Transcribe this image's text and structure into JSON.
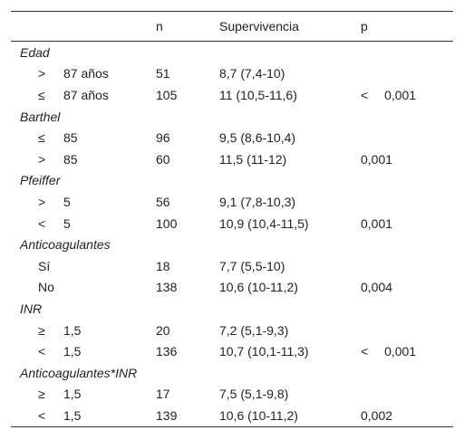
{
  "table": {
    "header": {
      "n": "n",
      "survival": "Supervivencia",
      "p": "p"
    },
    "groups": [
      {
        "title": "Edad",
        "rows": [
          {
            "sign": ">",
            "label": "87 años",
            "n": 51,
            "survival": "8,7 (7,4-10)"
          },
          {
            "sign": "≤",
            "label": "87 años",
            "n": 105,
            "survival": "11 (10,5-11,6)",
            "p": "< 0,001"
          }
        ]
      },
      {
        "title": "Barthel",
        "rows": [
          {
            "sign": "≤",
            "label": "85",
            "n": 96,
            "survival": "9,5 (8,6-10,4)"
          },
          {
            "sign": ">",
            "label": "85",
            "n": 60,
            "survival": "11,5 (11-12)",
            "p": "0,001"
          }
        ]
      },
      {
        "title": "Pfeiffer",
        "rows": [
          {
            "sign": ">",
            "label": "5",
            "n": 56,
            "survival": "9,1 (7,8-10,3)"
          },
          {
            "sign": "<",
            "label": "5",
            "n": 100,
            "survival": "10,9 (10,4-11,5)",
            "p": "0,001"
          }
        ]
      },
      {
        "title": "Anticoagulantes",
        "rows": [
          {
            "label": "Sí",
            "n": 18,
            "survival": "7,7 (5,5-10)"
          },
          {
            "label": "No",
            "n": 138,
            "survival": "10,6 (10-11,2)",
            "p": "0,004"
          }
        ]
      },
      {
        "title": "INR",
        "rows": [
          {
            "sign": "≥",
            "label": "1,5",
            "n": 20,
            "survival": "7,2 (5,1-9,3)"
          },
          {
            "sign": "<",
            "label": "1,5",
            "n": 136,
            "survival": "10,7 (10,1-11,3)",
            "p": "< 0,001"
          }
        ]
      },
      {
        "title": "Anticoagulantes*INR",
        "rows": [
          {
            "sign": "≥",
            "label": "1,5",
            "n": 17,
            "survival": "7,5 (5,1-9,8)"
          },
          {
            "sign": "<",
            "label": "1,5",
            "n": 139,
            "survival": "10,6 (10-11,2)",
            "p": "0,002"
          }
        ]
      }
    ]
  }
}
